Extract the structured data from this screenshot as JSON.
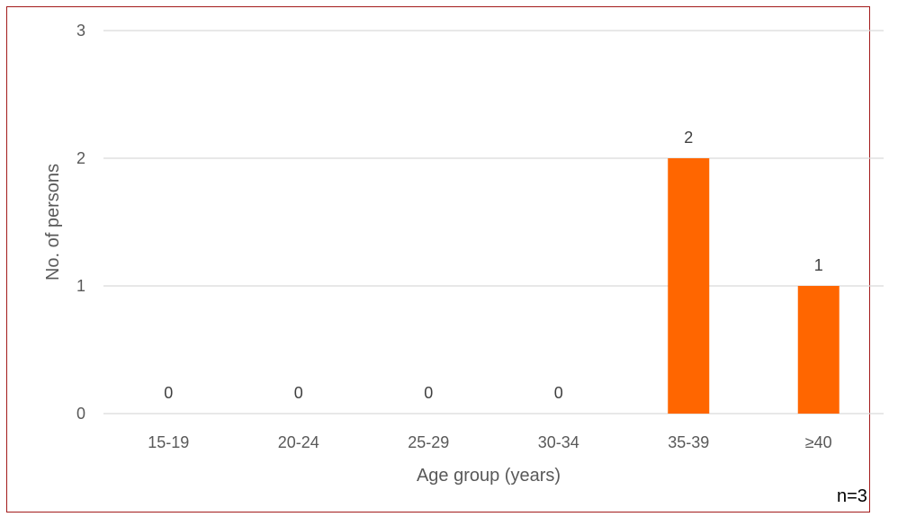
{
  "chart_data": {
    "type": "bar",
    "categories": [
      "15-19",
      "20-24",
      "25-29",
      "30-34",
      "35-39",
      "≥40"
    ],
    "values": [
      0,
      0,
      0,
      0,
      2,
      1
    ],
    "data_labels": [
      "0",
      "0",
      "0",
      "0",
      "2",
      "1"
    ],
    "xlabel": "Age group (years)",
    "ylabel": "No. of persons",
    "ylim": [
      0,
      3
    ],
    "yticks": [
      "0",
      "1",
      "2",
      "3"
    ],
    "grid": true,
    "annotation": "n=3",
    "colors": {
      "bar": "#ff6600",
      "grid": "#d9d9d9",
      "frame": "#a31b1b"
    }
  }
}
